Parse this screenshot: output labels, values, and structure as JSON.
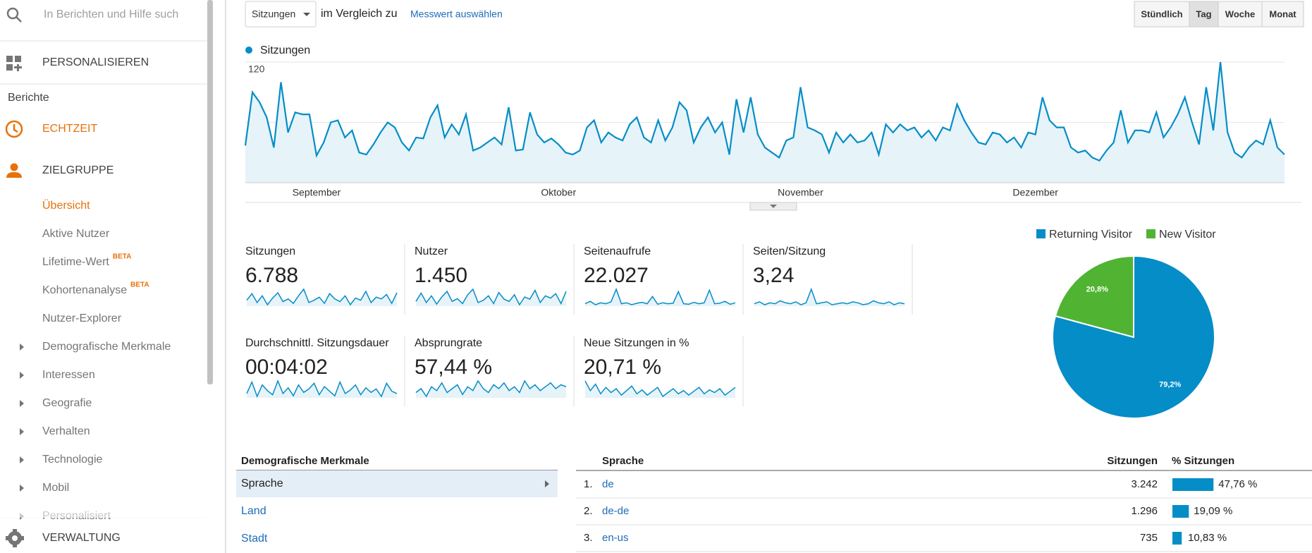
{
  "sidebar": {
    "search_placeholder": "In Berichten und Hilfe such",
    "personalize": "PERSONALISIEREN",
    "reports_heading": "Berichte",
    "realtime": "ECHTZEIT",
    "audience": "ZIELGRUPPE",
    "active_item": "Übersicht",
    "audience_items": [
      {
        "label": "Übersicht"
      },
      {
        "label": "Aktive Nutzer"
      },
      {
        "label": "Lifetime-Wert",
        "badge": "BETA"
      },
      {
        "label": "Kohortenanalyse",
        "badge": "BETA"
      },
      {
        "label": "Nutzer-Explorer"
      },
      {
        "label": "Demografische Merkmale",
        "expandable": true
      },
      {
        "label": "Interessen",
        "expandable": true
      },
      {
        "label": "Geografie",
        "expandable": true
      },
      {
        "label": "Verhalten",
        "expandable": true
      },
      {
        "label": "Technologie",
        "expandable": true
      },
      {
        "label": "Mobil",
        "expandable": true
      },
      {
        "label": "Personalisiert",
        "expandable": true
      }
    ],
    "admin": "VERWALTUNG"
  },
  "toolbar": {
    "metric": "Sitzungen",
    "compare": "im Vergleich zu",
    "select_metric": "Messwert auswählen",
    "periods": [
      "Stündlich",
      "Tag",
      "Woche",
      "Monat"
    ],
    "active_period": "Tag"
  },
  "chart_data": [
    {
      "type": "line",
      "series": [
        {
          "name": "Sitzungen",
          "color": "#058dc7",
          "values": [
            37,
            90,
            80,
            65,
            35,
            100,
            50,
            70,
            68,
            68,
            27,
            40,
            60,
            62,
            45,
            52,
            30,
            28,
            38,
            50,
            60,
            55,
            40,
            32,
            45,
            44,
            65,
            77,
            45,
            58,
            48,
            68,
            32,
            35,
            40,
            45,
            38,
            75,
            32,
            33,
            70,
            48,
            40,
            44,
            38,
            30,
            28,
            32,
            55,
            62,
            40,
            50,
            45,
            42,
            58,
            65,
            45,
            40,
            62,
            42,
            55,
            80,
            72,
            40,
            55,
            65,
            50,
            60,
            28,
            83,
            50,
            85,
            48,
            35,
            30,
            25,
            42,
            45,
            95,
            55,
            52,
            48,
            30,
            50,
            40,
            48,
            40,
            42,
            50,
            28,
            58,
            50,
            58,
            52,
            55,
            45,
            52,
            42,
            55,
            52,
            78,
            62,
            50,
            40,
            38,
            50,
            48,
            40,
            45,
            35,
            50,
            48,
            85,
            62,
            55,
            55,
            35,
            30,
            32,
            25,
            22,
            32,
            40,
            72,
            40,
            52,
            52,
            50,
            70,
            45,
            55,
            68,
            85,
            60,
            38,
            95,
            52,
            120,
            50,
            30,
            25,
            35,
            42,
            38,
            62,
            35,
            28
          ]
        }
      ],
      "ylim": [
        0,
        120
      ],
      "yticks": [
        60,
        120
      ],
      "xticks": [
        {
          "value": 10,
          "label": "September"
        },
        {
          "value": 44,
          "label": "Oktober"
        },
        {
          "value": 78,
          "label": "November"
        },
        {
          "value": 111,
          "label": "Dezember"
        }
      ],
      "grid": true
    },
    {
      "type": "pie",
      "categories": [
        "Returning Visitor",
        "New Visitor"
      ],
      "values": [
        79.2,
        20.8
      ],
      "value_labels": [
        "79,2%",
        "20,8%"
      ],
      "colors": [
        "#058dc7",
        "#50b432"
      ],
      "legend": "top"
    }
  ],
  "metrics": [
    {
      "label": "Sitzungen",
      "value": "6.788",
      "spark": [
        45,
        60,
        40,
        55,
        35,
        50,
        62,
        42,
        48,
        38,
        55,
        70,
        40,
        45,
        52,
        38,
        60,
        48,
        42,
        55,
        35,
        50,
        45,
        65,
        40,
        52,
        48,
        58,
        38,
        62
      ]
    },
    {
      "label": "Nutzer",
      "value": "1.450",
      "spark": [
        40,
        55,
        38,
        50,
        35,
        48,
        58,
        40,
        45,
        36,
        52,
        62,
        38,
        42,
        50,
        36,
        56,
        44,
        40,
        52,
        34,
        48,
        44,
        60,
        38,
        50,
        46,
        54,
        36,
        58
      ]
    },
    {
      "label": "Seitenaufrufe",
      "value": "22.027",
      "spark": [
        30,
        35,
        28,
        32,
        30,
        34,
        60,
        30,
        32,
        28,
        31,
        33,
        30,
        45,
        29,
        32,
        30,
        31,
        55,
        30,
        29,
        33,
        30,
        32,
        58,
        30,
        31,
        35,
        29,
        32
      ]
    },
    {
      "label": "Seiten/Sitzung",
      "value": "3,24",
      "spark": [
        30,
        32,
        29,
        31,
        30,
        33,
        31,
        30,
        32,
        29,
        31,
        45,
        30,
        31,
        32,
        29,
        30,
        31,
        30,
        32,
        31,
        29,
        30,
        33,
        31,
        30,
        32,
        29,
        31,
        30
      ]
    },
    {
      "label": "Durchschnittl. Sitzungsdauer",
      "value": "00:04:02",
      "spark": [
        40,
        60,
        35,
        55,
        45,
        38,
        62,
        40,
        50,
        36,
        55,
        42,
        48,
        58,
        38,
        52,
        44,
        36,
        60,
        40,
        46,
        55,
        38,
        50,
        42,
        48,
        35,
        58,
        44,
        40
      ]
    },
    {
      "label": "Absprungrate",
      "value": "57,44 %",
      "spark": [
        50,
        52,
        48,
        53,
        51,
        55,
        50,
        52,
        54,
        49,
        53,
        51,
        56,
        52,
        50,
        54,
        52,
        55,
        51,
        53,
        50,
        56,
        52,
        54,
        51,
        53,
        55,
        52,
        54,
        53
      ]
    },
    {
      "label": "Neue Sitzungen in %",
      "value": "20,71 %",
      "spark": [
        60,
        45,
        55,
        40,
        50,
        42,
        48,
        38,
        45,
        52,
        40,
        46,
        38,
        44,
        50,
        36,
        42,
        48,
        40,
        45,
        38,
        44,
        50,
        40,
        46,
        42,
        48,
        38,
        44,
        50
      ]
    }
  ],
  "demographics": {
    "title": "Demografische Merkmale",
    "items": [
      "Sprache",
      "Land",
      "Stadt"
    ],
    "selected": "Sprache"
  },
  "language_table": {
    "columns": [
      "Sprache",
      "Sitzungen",
      "% Sitzungen"
    ],
    "rows": [
      {
        "rank": "1.",
        "language": "de",
        "sessions": "3.242",
        "share": 47.76,
        "share_label": "47,76 %"
      },
      {
        "rank": "2.",
        "language": "de-de",
        "sessions": "1.296",
        "share": 19.09,
        "share_label": "19,09 %"
      },
      {
        "rank": "3.",
        "language": "en-us",
        "sessions": "735",
        "share": 10.83,
        "share_label": "10,83 %"
      }
    ]
  }
}
